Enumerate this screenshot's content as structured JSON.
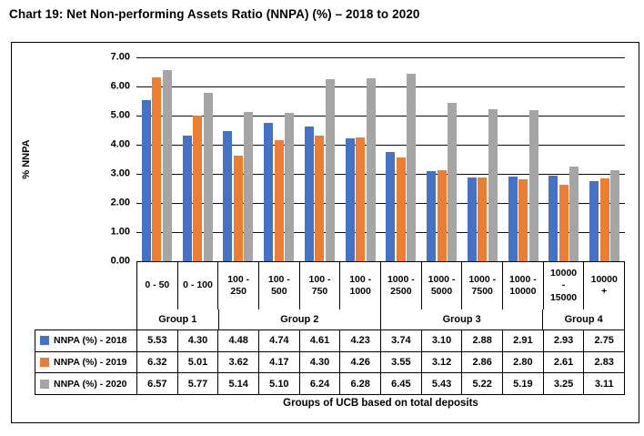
{
  "chart_data": {
    "type": "bar",
    "title": "Chart 19: Net Non-performing Assets Ratio (NNPA) (%) – 2018 to 2020",
    "ylabel": "% NNPA",
    "xlabel": "Groups of UCB based on total deposits",
    "ylim": [
      0,
      7
    ],
    "ytick_step": 1.0,
    "ytick_labels": [
      "0.00",
      "1.00",
      "2.00",
      "3.00",
      "4.00",
      "5.00",
      "6.00",
      "7.00"
    ],
    "grid": true,
    "legend_position": "data-table-left",
    "categories": [
      "0 - 50",
      "0 - 100",
      "100 - 250",
      "100 - 500",
      "100 - 750",
      "100 - 1000",
      "1000 - 2500",
      "1000 - 5000",
      "1000 - 7500",
      "1000 - 10000",
      "10000 - 15000",
      "10000 +"
    ],
    "category_label_lines": [
      [
        "0 - 50"
      ],
      [
        "0 - 100"
      ],
      [
        "100 -",
        "250"
      ],
      [
        "100 -",
        "500"
      ],
      [
        "100 -",
        "750"
      ],
      [
        "100 -",
        "1000"
      ],
      [
        "1000 -",
        "2500"
      ],
      [
        "1000 -",
        "5000"
      ],
      [
        "1000 -",
        "7500"
      ],
      [
        "1000 -",
        "10000"
      ],
      [
        "10000",
        "-",
        "15000"
      ],
      [
        "10000",
        "+"
      ]
    ],
    "groups": [
      {
        "label": "Group 1",
        "span": 2
      },
      {
        "label": "Group 2",
        "span": 4
      },
      {
        "label": "Group 3",
        "span": 4
      },
      {
        "label": "Group 4",
        "span": 2
      }
    ],
    "series": [
      {
        "name": "NNPA (%) - 2018",
        "color": "#4472C4",
        "values": [
          5.53,
          4.3,
          4.48,
          4.74,
          4.61,
          4.23,
          3.74,
          3.1,
          2.88,
          2.91,
          2.93,
          2.75
        ]
      },
      {
        "name": "NNPA (%) - 2019",
        "color": "#ED7D31",
        "values": [
          6.32,
          5.01,
          3.62,
          4.17,
          4.3,
          4.26,
          3.55,
          3.12,
          2.86,
          2.8,
          2.61,
          2.83
        ]
      },
      {
        "name": "NNPA (%) - 2020",
        "color": "#A5A5A5",
        "values": [
          6.57,
          5.77,
          5.14,
          5.1,
          6.24,
          6.28,
          6.45,
          5.43,
          5.22,
          5.19,
          3.25,
          3.11
        ]
      }
    ]
  }
}
